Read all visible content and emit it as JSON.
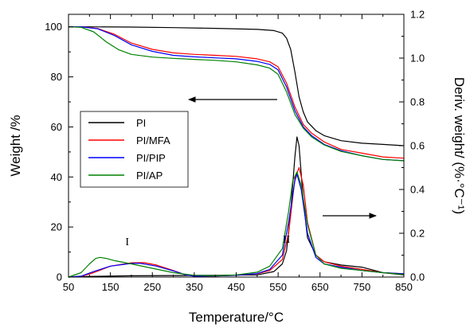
{
  "chart_data": {
    "type": "line",
    "xlabel": "Temperature/°C",
    "ylabel_left": "Weight /%",
    "ylabel_right": "Deriv. weight/ (%·°C⁻¹)",
    "xlim": [
      50,
      850
    ],
    "ylim_left": [
      0,
      105
    ],
    "ylim_right": [
      0,
      1.2
    ],
    "x_ticks": [
      50,
      150,
      250,
      350,
      450,
      550,
      650,
      750,
      850
    ],
    "y_left_ticks": [
      0,
      20,
      40,
      60,
      80,
      100
    ],
    "y_right_ticks": [
      0.0,
      0.2,
      0.4,
      0.6,
      0.8,
      1.0,
      1.2
    ],
    "y_right_tick_labels": [
      "0.0",
      "0.2",
      "0.4",
      "0.6",
      "0.8",
      "1.0",
      "1.2"
    ],
    "legend_position": "left-middle",
    "annotations": [
      "I",
      "II"
    ],
    "series_weight": [
      {
        "name": "PI",
        "color": "#000000",
        "x": [
          50,
          100,
          200,
          300,
          400,
          500,
          540,
          560,
          570,
          580,
          590,
          600,
          610,
          620,
          640,
          660,
          700,
          750,
          800,
          850
        ],
        "y": [
          100,
          100,
          99.9,
          99.7,
          99.4,
          99.0,
          98.5,
          97.5,
          95.5,
          91,
          82,
          72,
          66,
          62,
          58.5,
          56.5,
          54.5,
          53.5,
          53,
          52.5
        ]
      },
      {
        "name": "PI/MFA",
        "color": "#ff0000",
        "x": [
          50,
          80,
          120,
          160,
          200,
          250,
          300,
          350,
          400,
          450,
          500,
          530,
          550,
          570,
          590,
          610,
          630,
          660,
          700,
          750,
          800,
          850
        ],
        "y": [
          100,
          100,
          99.3,
          97,
          93.5,
          91,
          89.6,
          89,
          88.6,
          88.2,
          87.2,
          86,
          84,
          77.5,
          68,
          61,
          57.5,
          54,
          51,
          49.5,
          48,
          47.5
        ]
      },
      {
        "name": "PI/PIP",
        "color": "#0000ff",
        "x": [
          50,
          80,
          120,
          160,
          200,
          250,
          300,
          350,
          400,
          450,
          500,
          530,
          550,
          570,
          590,
          610,
          630,
          660,
          700,
          750,
          800,
          850
        ],
        "y": [
          100,
          100,
          99.2,
          96.5,
          92.8,
          90.2,
          88.6,
          88,
          87.6,
          87.2,
          86.2,
          85,
          82.8,
          76,
          66.5,
          60,
          56.5,
          53,
          50.5,
          48.5,
          47,
          46.5
        ]
      },
      {
        "name": "PI/AP",
        "color": "#008000",
        "x": [
          50,
          80,
          110,
          140,
          170,
          200,
          250,
          300,
          350,
          400,
          450,
          500,
          530,
          550,
          570,
          590,
          610,
          630,
          660,
          700,
          750,
          800,
          850
        ],
        "y": [
          100,
          99.8,
          98,
          94,
          90.8,
          89,
          87.9,
          87.4,
          87,
          86.6,
          86,
          84.8,
          83.5,
          81,
          74,
          65,
          59.5,
          56,
          52.8,
          50.2,
          48.5,
          47,
          46.5
        ]
      }
    ],
    "series_deriv": [
      {
        "name": "PI",
        "color": "#000000",
        "x": [
          50,
          100,
          200,
          300,
          400,
          500,
          540,
          560,
          570,
          580,
          590,
          595,
          600,
          610,
          620,
          640,
          660,
          700,
          750,
          800,
          850
        ],
        "y": [
          0,
          0.003,
          0.006,
          0.007,
          0.008,
          0.01,
          0.025,
          0.06,
          0.12,
          0.3,
          0.55,
          0.64,
          0.6,
          0.35,
          0.18,
          0.1,
          0.07,
          0.055,
          0.045,
          0.02,
          0.01
        ]
      },
      {
        "name": "PI/MFA",
        "color": "#ff0000",
        "x": [
          50,
          80,
          110,
          150,
          200,
          230,
          260,
          300,
          330,
          350,
          400,
          450,
          500,
          530,
          560,
          575,
          590,
          600,
          610,
          620,
          640,
          660,
          700,
          750,
          800,
          850
        ],
        "y": [
          0,
          0.003,
          0.02,
          0.05,
          0.065,
          0.066,
          0.055,
          0.03,
          0.01,
          0.004,
          0.005,
          0.008,
          0.015,
          0.03,
          0.08,
          0.2,
          0.45,
          0.5,
          0.42,
          0.25,
          0.1,
          0.07,
          0.05,
          0.035,
          0.02,
          0.015
        ]
      },
      {
        "name": "PI/PIP",
        "color": "#0000ff",
        "x": [
          50,
          80,
          110,
          150,
          200,
          220,
          260,
          300,
          330,
          350,
          400,
          450,
          500,
          530,
          560,
          575,
          590,
          595,
          605,
          620,
          640,
          660,
          700,
          750,
          800,
          850
        ],
        "y": [
          0,
          0.004,
          0.025,
          0.05,
          0.062,
          0.063,
          0.05,
          0.028,
          0.01,
          0.004,
          0.005,
          0.008,
          0.016,
          0.035,
          0.1,
          0.25,
          0.44,
          0.47,
          0.4,
          0.2,
          0.09,
          0.06,
          0.045,
          0.03,
          0.02,
          0.015
        ]
      },
      {
        "name": "PI/AP",
        "color": "#008000",
        "x": [
          50,
          80,
          100,
          115,
          125,
          140,
          160,
          200,
          250,
          300,
          350,
          400,
          450,
          500,
          530,
          560,
          575,
          585,
          595,
          605,
          620,
          640,
          660,
          700,
          750,
          800,
          850
        ],
        "y": [
          0,
          0.02,
          0.06,
          0.085,
          0.09,
          0.085,
          0.075,
          0.06,
          0.04,
          0.02,
          0.008,
          0.006,
          0.01,
          0.022,
          0.05,
          0.13,
          0.3,
          0.44,
          0.48,
          0.42,
          0.24,
          0.1,
          0.06,
          0.04,
          0.03,
          0.02,
          0.012
        ]
      }
    ]
  }
}
